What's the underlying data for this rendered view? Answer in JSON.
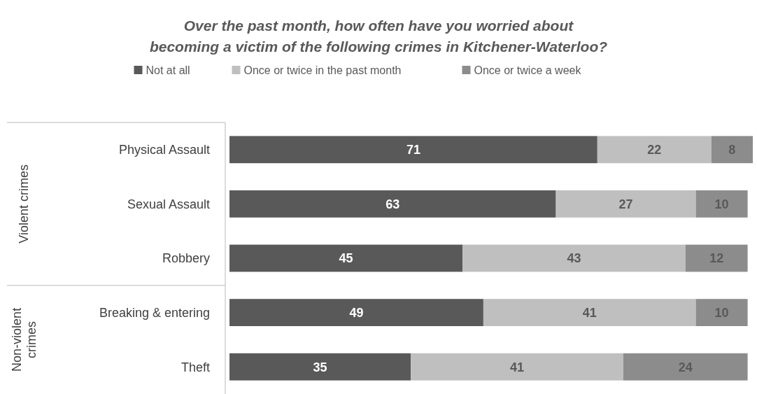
{
  "chart_data": {
    "type": "bar",
    "orientation": "horizontal",
    "stacked": true,
    "title": "Over the past month, how often have you worried about becoming a victim of the following crimes in Kitchener-Waterloo?",
    "categories": [
      "Physical Assault",
      "Sexual Assault",
      "Robbery",
      "Breaking & entering",
      "Theft"
    ],
    "series": [
      {
        "name": "Not at all",
        "color": "#595959",
        "values": [
          71,
          63,
          45,
          49,
          35
        ]
      },
      {
        "name": "Once or twice in the past month",
        "color": "#bfbfbf",
        "values": [
          22,
          27,
          43,
          41,
          41
        ]
      },
      {
        "name": "Once or twice a week",
        "color": "#8c8c8c",
        "values": [
          8,
          10,
          12,
          10,
          24
        ]
      }
    ],
    "xlim": [
      0,
      101
    ],
    "tick_labels": "y",
    "data_labels": true,
    "legend": "top",
    "annotations": [
      "Violent crimes",
      "Non-violent crimes"
    ]
  }
}
